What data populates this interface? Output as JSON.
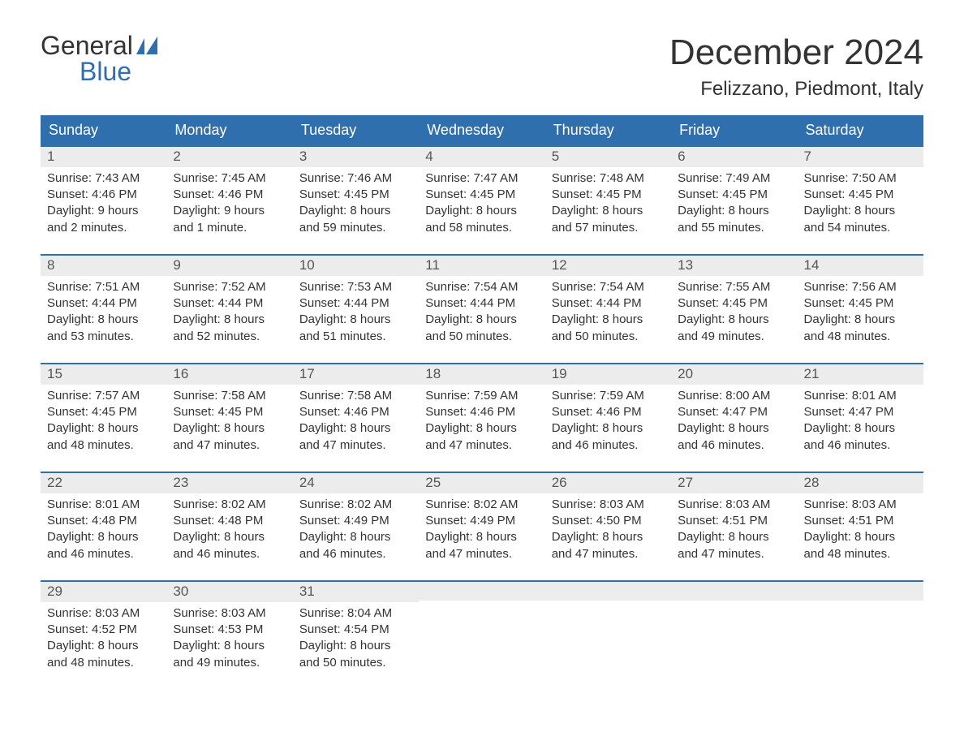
{
  "logo": {
    "word1": "General",
    "word2": "Blue",
    "brand_color": "#2f6fad"
  },
  "title": "December 2024",
  "location": "Felizzano, Piedmont, Italy",
  "colors": {
    "header_bg": "#2f6fad",
    "header_text": "#ffffff",
    "daynum_bg": "#ececec",
    "text": "#333333",
    "week_border": "#2f6fad"
  },
  "day_names": [
    "Sunday",
    "Monday",
    "Tuesday",
    "Wednesday",
    "Thursday",
    "Friday",
    "Saturday"
  ],
  "weeks": [
    [
      {
        "n": "1",
        "sr": "Sunrise: 7:43 AM",
        "ss": "Sunset: 4:46 PM",
        "d1": "Daylight: 9 hours",
        "d2": "and 2 minutes."
      },
      {
        "n": "2",
        "sr": "Sunrise: 7:45 AM",
        "ss": "Sunset: 4:46 PM",
        "d1": "Daylight: 9 hours",
        "d2": "and 1 minute."
      },
      {
        "n": "3",
        "sr": "Sunrise: 7:46 AM",
        "ss": "Sunset: 4:45 PM",
        "d1": "Daylight: 8 hours",
        "d2": "and 59 minutes."
      },
      {
        "n": "4",
        "sr": "Sunrise: 7:47 AM",
        "ss": "Sunset: 4:45 PM",
        "d1": "Daylight: 8 hours",
        "d2": "and 58 minutes."
      },
      {
        "n": "5",
        "sr": "Sunrise: 7:48 AM",
        "ss": "Sunset: 4:45 PM",
        "d1": "Daylight: 8 hours",
        "d2": "and 57 minutes."
      },
      {
        "n": "6",
        "sr": "Sunrise: 7:49 AM",
        "ss": "Sunset: 4:45 PM",
        "d1": "Daylight: 8 hours",
        "d2": "and 55 minutes."
      },
      {
        "n": "7",
        "sr": "Sunrise: 7:50 AM",
        "ss": "Sunset: 4:45 PM",
        "d1": "Daylight: 8 hours",
        "d2": "and 54 minutes."
      }
    ],
    [
      {
        "n": "8",
        "sr": "Sunrise: 7:51 AM",
        "ss": "Sunset: 4:44 PM",
        "d1": "Daylight: 8 hours",
        "d2": "and 53 minutes."
      },
      {
        "n": "9",
        "sr": "Sunrise: 7:52 AM",
        "ss": "Sunset: 4:44 PM",
        "d1": "Daylight: 8 hours",
        "d2": "and 52 minutes."
      },
      {
        "n": "10",
        "sr": "Sunrise: 7:53 AM",
        "ss": "Sunset: 4:44 PM",
        "d1": "Daylight: 8 hours",
        "d2": "and 51 minutes."
      },
      {
        "n": "11",
        "sr": "Sunrise: 7:54 AM",
        "ss": "Sunset: 4:44 PM",
        "d1": "Daylight: 8 hours",
        "d2": "and 50 minutes."
      },
      {
        "n": "12",
        "sr": "Sunrise: 7:54 AM",
        "ss": "Sunset: 4:44 PM",
        "d1": "Daylight: 8 hours",
        "d2": "and 50 minutes."
      },
      {
        "n": "13",
        "sr": "Sunrise: 7:55 AM",
        "ss": "Sunset: 4:45 PM",
        "d1": "Daylight: 8 hours",
        "d2": "and 49 minutes."
      },
      {
        "n": "14",
        "sr": "Sunrise: 7:56 AM",
        "ss": "Sunset: 4:45 PM",
        "d1": "Daylight: 8 hours",
        "d2": "and 48 minutes."
      }
    ],
    [
      {
        "n": "15",
        "sr": "Sunrise: 7:57 AM",
        "ss": "Sunset: 4:45 PM",
        "d1": "Daylight: 8 hours",
        "d2": "and 48 minutes."
      },
      {
        "n": "16",
        "sr": "Sunrise: 7:58 AM",
        "ss": "Sunset: 4:45 PM",
        "d1": "Daylight: 8 hours",
        "d2": "and 47 minutes."
      },
      {
        "n": "17",
        "sr": "Sunrise: 7:58 AM",
        "ss": "Sunset: 4:46 PM",
        "d1": "Daylight: 8 hours",
        "d2": "and 47 minutes."
      },
      {
        "n": "18",
        "sr": "Sunrise: 7:59 AM",
        "ss": "Sunset: 4:46 PM",
        "d1": "Daylight: 8 hours",
        "d2": "and 47 minutes."
      },
      {
        "n": "19",
        "sr": "Sunrise: 7:59 AM",
        "ss": "Sunset: 4:46 PM",
        "d1": "Daylight: 8 hours",
        "d2": "and 46 minutes."
      },
      {
        "n": "20",
        "sr": "Sunrise: 8:00 AM",
        "ss": "Sunset: 4:47 PM",
        "d1": "Daylight: 8 hours",
        "d2": "and 46 minutes."
      },
      {
        "n": "21",
        "sr": "Sunrise: 8:01 AM",
        "ss": "Sunset: 4:47 PM",
        "d1": "Daylight: 8 hours",
        "d2": "and 46 minutes."
      }
    ],
    [
      {
        "n": "22",
        "sr": "Sunrise: 8:01 AM",
        "ss": "Sunset: 4:48 PM",
        "d1": "Daylight: 8 hours",
        "d2": "and 46 minutes."
      },
      {
        "n": "23",
        "sr": "Sunrise: 8:02 AM",
        "ss": "Sunset: 4:48 PM",
        "d1": "Daylight: 8 hours",
        "d2": "and 46 minutes."
      },
      {
        "n": "24",
        "sr": "Sunrise: 8:02 AM",
        "ss": "Sunset: 4:49 PM",
        "d1": "Daylight: 8 hours",
        "d2": "and 46 minutes."
      },
      {
        "n": "25",
        "sr": "Sunrise: 8:02 AM",
        "ss": "Sunset: 4:49 PM",
        "d1": "Daylight: 8 hours",
        "d2": "and 47 minutes."
      },
      {
        "n": "26",
        "sr": "Sunrise: 8:03 AM",
        "ss": "Sunset: 4:50 PM",
        "d1": "Daylight: 8 hours",
        "d2": "and 47 minutes."
      },
      {
        "n": "27",
        "sr": "Sunrise: 8:03 AM",
        "ss": "Sunset: 4:51 PM",
        "d1": "Daylight: 8 hours",
        "d2": "and 47 minutes."
      },
      {
        "n": "28",
        "sr": "Sunrise: 8:03 AM",
        "ss": "Sunset: 4:51 PM",
        "d1": "Daylight: 8 hours",
        "d2": "and 48 minutes."
      }
    ],
    [
      {
        "n": "29",
        "sr": "Sunrise: 8:03 AM",
        "ss": "Sunset: 4:52 PM",
        "d1": "Daylight: 8 hours",
        "d2": "and 48 minutes."
      },
      {
        "n": "30",
        "sr": "Sunrise: 8:03 AM",
        "ss": "Sunset: 4:53 PM",
        "d1": "Daylight: 8 hours",
        "d2": "and 49 minutes."
      },
      {
        "n": "31",
        "sr": "Sunrise: 8:04 AM",
        "ss": "Sunset: 4:54 PM",
        "d1": "Daylight: 8 hours",
        "d2": "and 50 minutes."
      },
      null,
      null,
      null,
      null
    ]
  ]
}
